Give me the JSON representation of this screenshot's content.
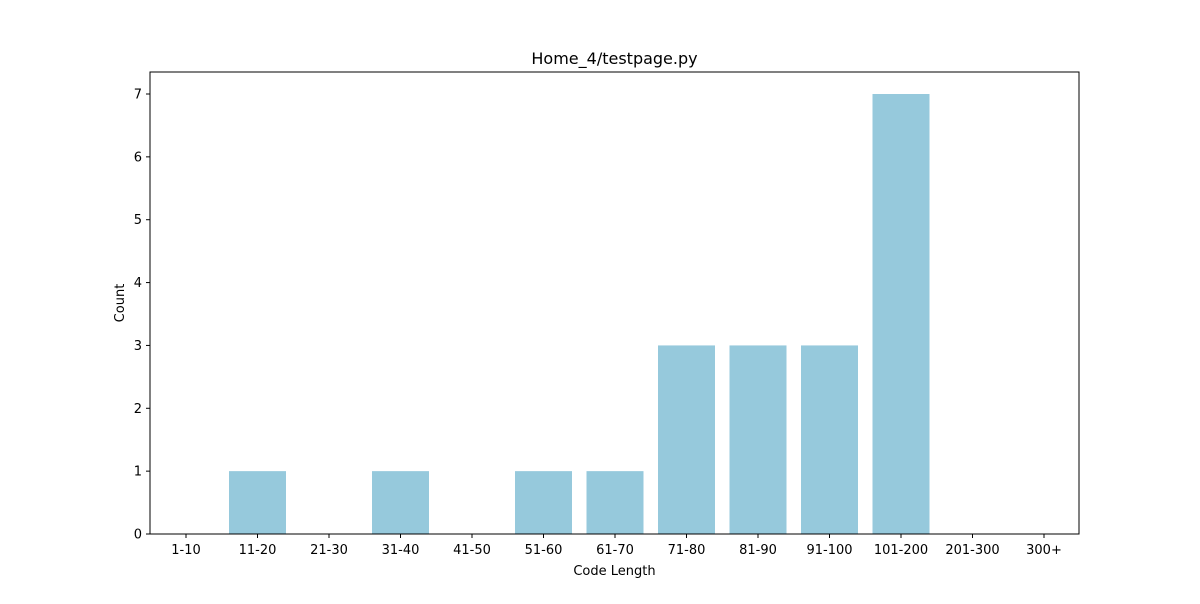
{
  "chart_data": {
    "type": "bar",
    "title": "Home_4/testpage.py",
    "xlabel": "Code Length",
    "ylabel": "Count",
    "categories": [
      "1-10",
      "11-20",
      "21-30",
      "31-40",
      "41-50",
      "51-60",
      "61-70",
      "71-80",
      "81-90",
      "91-100",
      "101-200",
      "201-300",
      "300+"
    ],
    "values": [
      0,
      1,
      0,
      1,
      0,
      1,
      1,
      3,
      3,
      3,
      7,
      0,
      0
    ],
    "ylim": [
      0,
      7.35
    ],
    "yticks": [
      0,
      1,
      2,
      3,
      4,
      5,
      6,
      7
    ],
    "bar_color": "#96c9dc",
    "grid": false,
    "legend": false
  }
}
